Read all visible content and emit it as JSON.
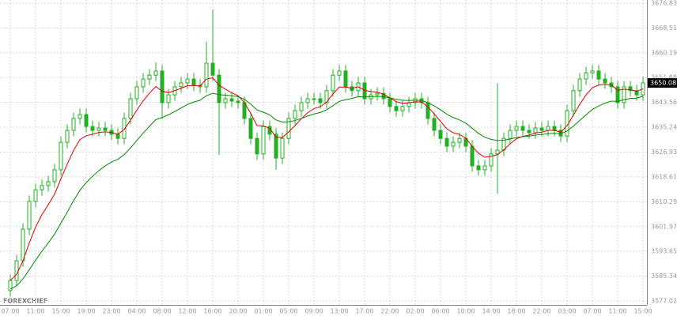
{
  "chart_data": {
    "type": "candlestick",
    "watermark": "FOREXCHIEF",
    "last_price": 3650.08,
    "candle_color": "#22b022",
    "grid": true,
    "ylim": [
      3577.02,
      3676.83
    ],
    "yticks": [
      3676.83,
      3668.51,
      3660.19,
      3651.88,
      3643.56,
      3635.24,
      3626.93,
      3618.61,
      3610.29,
      3601.97,
      3593.65,
      3585.34,
      3577.02
    ],
    "categories": [
      "07:00",
      null,
      null,
      null,
      "11:00",
      null,
      null,
      null,
      "15:00",
      null,
      null,
      null,
      "19:00",
      null,
      null,
      null,
      "23:00",
      null,
      null,
      null,
      "04:00",
      null,
      null,
      null,
      "08:00",
      null,
      null,
      null,
      "12:00",
      null,
      null,
      null,
      "16:00",
      null,
      null,
      null,
      "20:00",
      null,
      null,
      null,
      "01:00",
      null,
      null,
      null,
      "05:00",
      null,
      null,
      null,
      "09:00",
      null,
      null,
      null,
      "13:00",
      null,
      null,
      null,
      "17:00",
      null,
      null,
      null,
      "22:00",
      null,
      null,
      null,
      "02:00",
      null,
      null,
      null,
      "06:00",
      null,
      null,
      null,
      "10:00",
      null,
      null,
      null,
      "14:00",
      null,
      null,
      null,
      "18:00",
      null,
      null,
      null,
      "22:00",
      null,
      null,
      null,
      "03:00",
      null,
      null,
      null,
      "07:00",
      null,
      null,
      null,
      "11:00",
      null,
      null,
      null,
      "15:00"
    ],
    "open": [
      3580.5,
      3583.9,
      3590.5,
      3601.1,
      3610.4,
      3614.3,
      3615.7,
      3617.0,
      3621.0,
      3630.2,
      3634.2,
      3638.2,
      3639.5,
      3635.5,
      3634.2,
      3635.0,
      3634.2,
      3632.9,
      3631.5,
      3638.2,
      3644.8,
      3648.8,
      3651.4,
      3652.7,
      3654.1,
      3643.5,
      3646.1,
      3648.8,
      3650.1,
      3651.4,
      3649.3,
      3648.8,
      3656.7,
      3652.7,
      3643.5,
      3644.8,
      3644.0,
      3643.5,
      3638.2,
      3631.5,
      3626.3,
      3635.5,
      3632.9,
      3624.9,
      3631.5,
      3638.2,
      3640.8,
      3643.5,
      3644.8,
      3644.8,
      3643.5,
      3647.5,
      3652.7,
      3654.1,
      3648.8,
      3647.5,
      3650.1,
      3644.8,
      3646.1,
      3646.6,
      3644.8,
      3642.2,
      3640.8,
      3642.2,
      3643.5,
      3644.8,
      3643.5,
      3638.2,
      3634.2,
      3631.5,
      3628.9,
      3630.2,
      3631.5,
      3628.9,
      3622.3,
      3621.0,
      3622.3,
      3626.3,
      3627.6,
      3631.5,
      3634.2,
      3635.5,
      3634.2,
      3633.4,
      3635.0,
      3634.2,
      3635.5,
      3634.2,
      3632.3,
      3640.8,
      3647.5,
      3651.4,
      3653.5,
      3654.1,
      3651.4,
      3650.1,
      3648.8,
      3643.5,
      3648.8,
      3647.5,
      3646.1
    ],
    "high": [
      3585.9,
      3592.5,
      3603.1,
      3612.4,
      3616.3,
      3617.7,
      3619.0,
      3623.0,
      3632.2,
      3636.2,
      3640.2,
      3641.5,
      3641.5,
      3637.5,
      3637.0,
      3637.0,
      3636.2,
      3634.9,
      3640.2,
      3646.8,
      3650.8,
      3653.4,
      3654.7,
      3657.0,
      3656.1,
      3648.1,
      3650.8,
      3652.1,
      3653.4,
      3653.4,
      3651.3,
      3664.0,
      3674.7,
      3654.7,
      3646.8,
      3646.8,
      3646.0,
      3645.5,
      3640.2,
      3633.5,
      3637.5,
      3637.5,
      3634.9,
      3633.5,
      3640.2,
      3642.8,
      3645.5,
      3646.8,
      3646.8,
      3646.8,
      3649.5,
      3654.7,
      3656.1,
      3656.1,
      3650.8,
      3652.1,
      3652.1,
      3648.1,
      3648.6,
      3648.6,
      3646.8,
      3644.2,
      3644.2,
      3645.5,
      3646.8,
      3646.8,
      3645.5,
      3640.2,
      3636.2,
      3633.5,
      3632.2,
      3633.5,
      3633.5,
      3630.9,
      3624.3,
      3624.3,
      3628.3,
      3650.0,
      3633.5,
      3636.2,
      3637.5,
      3637.5,
      3636.2,
      3637.0,
      3637.0,
      3637.5,
      3637.5,
      3636.2,
      3642.8,
      3649.5,
      3653.4,
      3655.5,
      3656.1,
      3656.1,
      3653.4,
      3652.1,
      3650.8,
      3650.8,
      3650.8,
      3649.5,
      3652.1
    ],
    "low": [
      3578.5,
      3581.9,
      3588.5,
      3599.1,
      3608.4,
      3612.3,
      3613.7,
      3615.0,
      3619.0,
      3628.2,
      3632.2,
      3636.2,
      3633.5,
      3632.2,
      3632.2,
      3632.2,
      3630.9,
      3629.5,
      3629.5,
      3636.2,
      3642.8,
      3646.8,
      3649.4,
      3650.7,
      3638.0,
      3641.5,
      3644.1,
      3646.8,
      3648.1,
      3647.3,
      3646.8,
      3646.8,
      3650.7,
      3626.0,
      3641.5,
      3642.0,
      3641.5,
      3636.2,
      3629.5,
      3624.3,
      3624.3,
      3630.9,
      3621.0,
      3622.9,
      3629.5,
      3636.2,
      3638.8,
      3641.5,
      3642.8,
      3641.5,
      3641.5,
      3645.5,
      3650.7,
      3646.8,
      3645.5,
      3645.5,
      3642.8,
      3642.8,
      3644.1,
      3642.8,
      3640.2,
      3638.8,
      3638.8,
      3640.2,
      3641.5,
      3641.5,
      3636.2,
      3632.2,
      3629.5,
      3626.9,
      3626.9,
      3628.2,
      3626.9,
      3620.3,
      3619.0,
      3619.0,
      3620.3,
      3613.0,
      3625.6,
      3629.5,
      3632.2,
      3632.2,
      3631.4,
      3631.4,
      3632.2,
      3632.2,
      3632.2,
      3630.3,
      3630.3,
      3638.8,
      3645.5,
      3649.4,
      3651.5,
      3649.4,
      3648.1,
      3646.8,
      3641.5,
      3641.5,
      3645.5,
      3644.1,
      3644.1
    ],
    "close": [
      3583.9,
      3590.5,
      3601.1,
      3610.4,
      3614.3,
      3615.7,
      3617.0,
      3621.0,
      3630.2,
      3634.2,
      3638.2,
      3639.5,
      3635.5,
      3634.2,
      3635.0,
      3634.2,
      3632.9,
      3631.5,
      3638.2,
      3644.8,
      3648.8,
      3651.4,
      3652.7,
      3654.1,
      3643.5,
      3646.1,
      3648.8,
      3650.1,
      3651.4,
      3649.3,
      3648.8,
      3656.7,
      3652.7,
      3643.5,
      3644.8,
      3644.0,
      3643.5,
      3638.2,
      3631.5,
      3626.3,
      3635.5,
      3632.9,
      3624.9,
      3631.5,
      3638.2,
      3640.8,
      3643.5,
      3644.8,
      3644.8,
      3643.5,
      3647.5,
      3652.7,
      3654.1,
      3648.8,
      3647.5,
      3650.1,
      3644.8,
      3646.1,
      3646.6,
      3644.8,
      3642.2,
      3640.8,
      3642.2,
      3643.5,
      3644.8,
      3643.5,
      3638.2,
      3634.2,
      3631.5,
      3628.9,
      3630.2,
      3631.5,
      3628.9,
      3622.3,
      3621.0,
      3622.3,
      3626.3,
      3627.6,
      3631.5,
      3634.2,
      3635.5,
      3634.2,
      3633.4,
      3635.0,
      3634.2,
      3635.5,
      3634.2,
      3632.3,
      3640.8,
      3647.5,
      3651.4,
      3653.5,
      3654.1,
      3651.4,
      3650.1,
      3648.8,
      3643.5,
      3648.8,
      3647.5,
      3646.1,
      3650.1
    ],
    "lines": [
      {
        "color": "#e00000",
        "values": [
          3583.9,
          3585.9,
          3590.5,
          3596.5,
          3601.8,
          3606.0,
          3609.3,
          3612.8,
          3618.0,
          3622.9,
          3627.5,
          3631.1,
          3632.4,
          3632.9,
          3633.5,
          3633.7,
          3633.5,
          3632.9,
          3634.5,
          3637.6,
          3641.0,
          3644.1,
          3646.7,
          3648.9,
          3647.3,
          3646.9,
          3647.5,
          3648.3,
          3649.2,
          3649.2,
          3649.1,
          3651.4,
          3651.8,
          3649.3,
          3648.0,
          3646.8,
          3645.8,
          3643.5,
          3639.9,
          3635.8,
          3635.7,
          3634.9,
          3631.9,
          3631.8,
          3633.7,
          3635.8,
          3638.1,
          3640.1,
          3641.5,
          3642.1,
          3643.7,
          3646.4,
          3648.7,
          3648.7,
          3648.3,
          3648.8,
          3647.6,
          3647.2,
          3647.0,
          3646.3,
          3645.1,
          3643.8,
          3643.3,
          3643.4,
          3643.8,
          3643.7,
          3642.1,
          3639.7,
          3637.2,
          3634.7,
          3633.4,
          3632.8,
          3631.6,
          3628.8,
          3626.5,
          3625.2,
          3625.5,
          3626.1,
          3627.7,
          3629.7,
          3631.4,
          3632.2,
          3632.6,
          3633.3,
          3633.6,
          3634.2,
          3634.2,
          3633.6,
          3635.8,
          3639.3,
          3642.9,
          3646.1,
          3648.5,
          3649.4,
          3649.6,
          3649.4,
          3647.6,
          3648.0,
          3647.8,
          3647.3,
          3648.1
        ]
      },
      {
        "color": "#008a00",
        "values": [
          3581.0,
          3582.1,
          3584.4,
          3587.5,
          3590.7,
          3593.7,
          3596.5,
          3599.4,
          3603.1,
          3606.8,
          3610.6,
          3614.1,
          3616.7,
          3618.8,
          3620.7,
          3622.3,
          3623.6,
          3624.5,
          3626.1,
          3628.3,
          3630.8,
          3633.3,
          3635.6,
          3637.8,
          3638.5,
          3639.4,
          3640.5,
          3641.7,
          3642.9,
          3643.7,
          3644.3,
          3645.8,
          3646.6,
          3646.2,
          3646.0,
          3645.8,
          3645.5,
          3644.6,
          3643.0,
          3641.0,
          3640.3,
          3639.4,
          3637.7,
          3637.0,
          3637.1,
          3637.5,
          3638.2,
          3639.0,
          3639.7,
          3640.2,
          3641.1,
          3642.5,
          3643.9,
          3644.5,
          3644.9,
          3645.5,
          3645.4,
          3645.5,
          3645.6,
          3645.5,
          3645.1,
          3644.6,
          3644.3,
          3644.2,
          3644.3,
          3644.2,
          3643.5,
          3642.4,
          3641.1,
          3639.6,
          3638.5,
          3637.7,
          3636.6,
          3634.9,
          3633.2,
          3631.9,
          3631.2,
          3630.8,
          3630.9,
          3631.3,
          3631.8,
          3632.1,
          3632.3,
          3632.6,
          3632.8,
          3633.1,
          3633.2,
          3633.1,
          3634.0,
          3635.6,
          3637.5,
          3639.4,
          3641.2,
          3642.4,
          3643.3,
          3644.0,
          3643.9,
          3644.5,
          3644.9,
          3645.0,
          3645.6
        ]
      }
    ]
  }
}
